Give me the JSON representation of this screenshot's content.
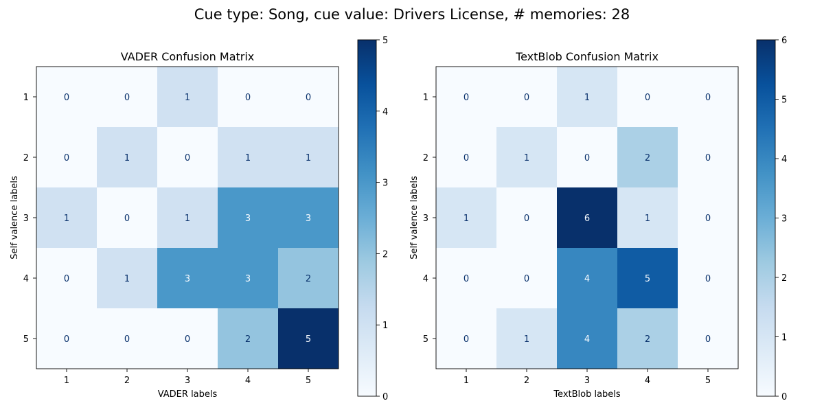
{
  "suptitle": "Cue type: Song, cue value: Drivers License, # memories: 28",
  "chart_data": [
    {
      "type": "heatmap",
      "title": "VADER Confusion Matrix",
      "xlabel": "VADER labels",
      "ylabel": "Self valence labels",
      "x_categories": [
        "1",
        "2",
        "3",
        "4",
        "5"
      ],
      "y_categories": [
        "1",
        "2",
        "3",
        "4",
        "5"
      ],
      "values": [
        [
          0,
          0,
          1,
          0,
          0
        ],
        [
          0,
          1,
          0,
          1,
          1
        ],
        [
          1,
          0,
          1,
          3,
          3
        ],
        [
          0,
          1,
          3,
          3,
          2
        ],
        [
          0,
          0,
          0,
          2,
          5
        ]
      ],
      "colorbar": {
        "min": 0,
        "max": 5,
        "ticks": [
          "0",
          "1",
          "2",
          "3",
          "4",
          "5"
        ]
      },
      "colormap": "Blues"
    },
    {
      "type": "heatmap",
      "title": "TextBlob Confusion Matrix",
      "xlabel": "TextBlob labels",
      "ylabel": "Self valence labels",
      "x_categories": [
        "1",
        "2",
        "3",
        "4",
        "5"
      ],
      "y_categories": [
        "1",
        "2",
        "3",
        "4",
        "5"
      ],
      "values": [
        [
          0,
          0,
          1,
          0,
          0
        ],
        [
          0,
          1,
          0,
          2,
          0
        ],
        [
          1,
          0,
          6,
          1,
          0
        ],
        [
          0,
          0,
          4,
          5,
          0
        ],
        [
          0,
          1,
          4,
          2,
          0
        ]
      ],
      "colorbar": {
        "min": 0,
        "max": 6,
        "ticks": [
          "0",
          "1",
          "2",
          "3",
          "4",
          "5",
          "6"
        ]
      },
      "colormap": "Blues"
    }
  ]
}
